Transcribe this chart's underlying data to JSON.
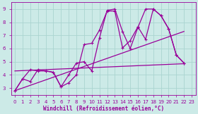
{
  "bg_color": "#cceae7",
  "grid_color": "#aad4d0",
  "line_color": "#990099",
  "xlabel": "Windchill (Refroidissement éolien,°C)",
  "xlabel_color": "#990099",
  "xlim": [
    -0.5,
    23.5
  ],
  "ylim": [
    2.5,
    9.5
  ],
  "xticks": [
    0,
    1,
    2,
    3,
    4,
    5,
    6,
    7,
    8,
    9,
    10,
    11,
    12,
    13,
    14,
    15,
    16,
    17,
    18,
    19,
    20,
    21,
    22,
    23
  ],
  "yticks": [
    3,
    4,
    5,
    6,
    7,
    8,
    9
  ],
  "series": [
    {
      "x": [
        0,
        1,
        2,
        3,
        4,
        5,
        6,
        7,
        8,
        9,
        10,
        11,
        12,
        13,
        14,
        15,
        16,
        17,
        18,
        19,
        20,
        21,
        22
      ],
      "y": [
        2.8,
        3.7,
        3.5,
        4.4,
        4.3,
        4.2,
        3.1,
        4.0,
        4.9,
        5.0,
        4.3,
        6.8,
        8.9,
        9.0,
        7.3,
        6.0,
        7.6,
        9.0,
        9.0,
        8.5,
        7.5,
        5.5,
        4.9
      ],
      "marker": true,
      "linewidth": 0.9
    },
    {
      "x": [
        0,
        1,
        2,
        3,
        4,
        5,
        6,
        7,
        8,
        9,
        10,
        11,
        12,
        13,
        14,
        15,
        16,
        17,
        18,
        19,
        20,
        21,
        22
      ],
      "y": [
        2.8,
        3.7,
        4.4,
        4.3,
        4.3,
        4.2,
        3.1,
        3.4,
        4.0,
        6.3,
        6.4,
        7.4,
        8.85,
        8.85,
        6.05,
        6.6,
        7.65,
        6.7,
        9.0,
        8.5,
        7.5,
        5.5,
        4.9
      ],
      "marker": true,
      "linewidth": 0.9
    },
    {
      "x": [
        0,
        22
      ],
      "y": [
        4.3,
        4.85
      ],
      "marker": false,
      "linewidth": 0.9
    },
    {
      "x": [
        0,
        22
      ],
      "y": [
        2.8,
        7.3
      ],
      "marker": false,
      "linewidth": 0.9
    }
  ]
}
